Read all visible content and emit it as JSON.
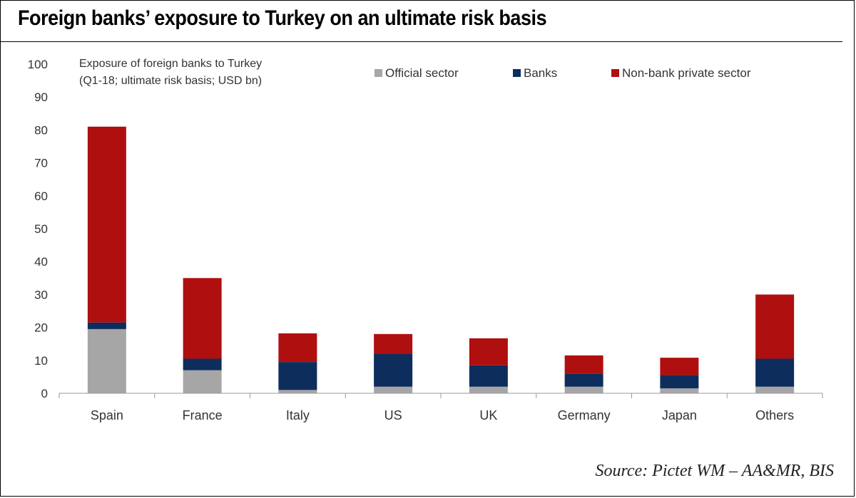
{
  "page": {
    "title": "Foreign banks’ exposure to Turkey on an ultimate risk basis",
    "source": "Source: Pictet WM – AA&MR, BIS"
  },
  "chart_data": {
    "type": "bar",
    "stacked": true,
    "subtitle_lines": [
      "Exposure of foreign banks to Turkey",
      "(Q1-18; ultimate risk basis; USD bn)"
    ],
    "categories": [
      "Spain",
      "France",
      "Italy",
      "US",
      "UK",
      "Germany",
      "Japan",
      "Others"
    ],
    "series": [
      {
        "name": "Official sector",
        "color": "#a6a6a6",
        "values": [
          19.5,
          7,
          1,
          2,
          2,
          2,
          1.5,
          2
        ]
      },
      {
        "name": "Banks",
        "color": "#0d2d5c",
        "values": [
          2,
          3.5,
          8.5,
          10,
          6.5,
          4,
          4,
          8.5
        ]
      },
      {
        "name": "Non-bank private sector",
        "color": "#b00f0f",
        "values": [
          59.5,
          24.5,
          8.7,
          6,
          8.2,
          5.5,
          5.3,
          19.5
        ]
      }
    ],
    "ylim": [
      0,
      100
    ],
    "yticks": [
      0,
      10,
      20,
      30,
      40,
      50,
      60,
      70,
      80,
      90,
      100
    ],
    "grid": false,
    "legend_position": "top"
  }
}
